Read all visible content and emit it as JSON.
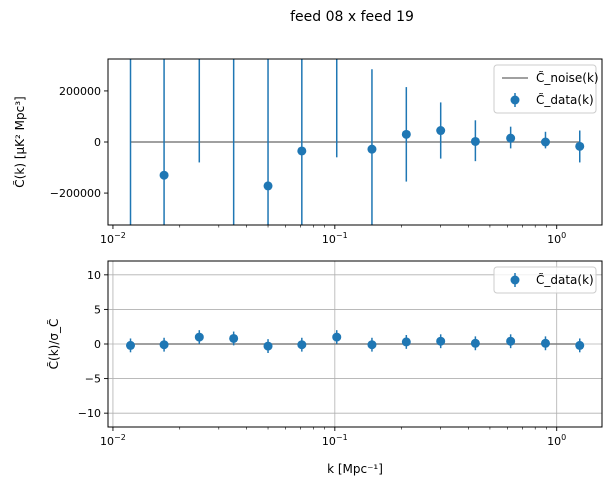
{
  "figure": {
    "suptitle": "feed 08 x feed 19"
  },
  "chart_data": [
    {
      "type": "scatter",
      "panel": "top",
      "xscale": "log",
      "xlim": [
        0.0095,
        1.6
      ],
      "ylim": [
        -325000,
        325000
      ],
      "xticks": [
        {
          "value": 0.01,
          "base": "10",
          "exp": "−2"
        },
        {
          "value": 0.1,
          "base": "10",
          "exp": "−1"
        },
        {
          "value": 1,
          "base": "10",
          "exp": "0"
        }
      ],
      "yticks": [
        {
          "value": -200000,
          "label": "−200000"
        },
        {
          "value": 0,
          "label": "0"
        },
        {
          "value": 200000,
          "label": "200000"
        }
      ],
      "ylabel": "C̃(k) [μK² Mpc³]",
      "grid": false,
      "legend_position": "top-right",
      "colors": {
        "data": "#1f77b4",
        "noise": "#808080"
      },
      "series": [
        {
          "name": "C̃_data(k)",
          "x": [
            0.012,
            0.017,
            0.0245,
            0.035,
            0.05,
            0.071,
            0.102,
            0.147,
            0.21,
            0.3,
            0.43,
            0.62,
            0.89,
            1.27
          ],
          "y": [
            null,
            -130000,
            null,
            null,
            -172000,
            -35000,
            null,
            -28000,
            30000,
            45000,
            2000,
            15000,
            0,
            -17000
          ],
          "yerr_low": [
            -325000,
            -325000,
            -80000,
            -325000,
            -325000,
            -325000,
            -60000,
            -325000,
            -155000,
            -65000,
            -75000,
            -25000,
            -25000,
            -80000
          ],
          "yerr_high": [
            325000,
            325000,
            325000,
            325000,
            325000,
            325000,
            325000,
            285000,
            215000,
            155000,
            85000,
            60000,
            40000,
            45000
          ]
        },
        {
          "name": "C̃_noise(k)",
          "x": [
            0.012,
            1.27
          ],
          "y": [
            0,
            0
          ]
        }
      ],
      "legend": [
        {
          "label": "C̃_noise(k)",
          "kind": "line"
        },
        {
          "label": "C̃_data(k)",
          "kind": "errorbar"
        }
      ]
    },
    {
      "type": "scatter",
      "panel": "bottom",
      "xscale": "log",
      "xlim": [
        0.0095,
        1.6
      ],
      "ylim": [
        -12,
        12
      ],
      "xticks": [
        {
          "value": 0.01,
          "base": "10",
          "exp": "−2"
        },
        {
          "value": 0.1,
          "base": "10",
          "exp": "−1"
        },
        {
          "value": 1,
          "base": "10",
          "exp": "0"
        }
      ],
      "yticks": [
        {
          "value": -10,
          "label": "−10"
        },
        {
          "value": -5,
          "label": "−5"
        },
        {
          "value": 0,
          "label": "0"
        },
        {
          "value": 5,
          "label": "5"
        },
        {
          "value": 10,
          "label": "10"
        }
      ],
      "ylabel": "C̃(k)/σ_C̃",
      "xlabel": "k [Mpc⁻¹]",
      "grid": true,
      "legend_position": "top-right",
      "colors": {
        "data": "#1f77b4",
        "zero": "#808080"
      },
      "series": [
        {
          "name": "C̃_data(k)",
          "x": [
            0.012,
            0.017,
            0.0245,
            0.035,
            0.05,
            0.071,
            0.102,
            0.147,
            0.21,
            0.3,
            0.43,
            0.62,
            0.89,
            1.27
          ],
          "y": [
            -0.2,
            -0.1,
            1.0,
            0.8,
            -0.3,
            -0.1,
            1.0,
            -0.1,
            0.3,
            0.4,
            0.1,
            0.4,
            0.1,
            -0.2
          ],
          "yerr": [
            1,
            1,
            1,
            1,
            1,
            1,
            1,
            1,
            1,
            1,
            1,
            1,
            1,
            1
          ]
        }
      ],
      "legend": [
        {
          "label": "C̃_data(k)",
          "kind": "errorbar"
        }
      ]
    }
  ]
}
